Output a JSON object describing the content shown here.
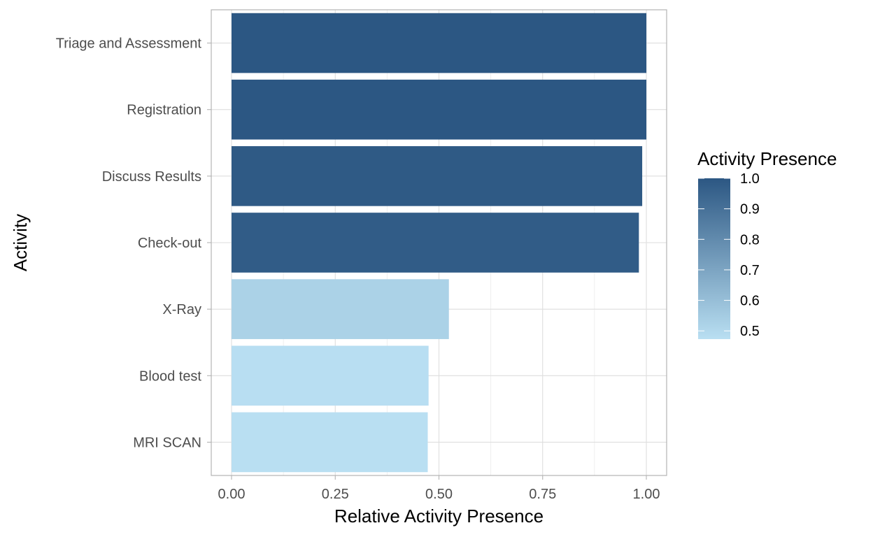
{
  "chart_data": {
    "type": "bar",
    "orientation": "horizontal",
    "title": "",
    "xlabel": "Relative Activity Presence",
    "ylabel": "Activity",
    "xlim": [
      -0.05,
      1.05
    ],
    "x_ticks": [
      "0.00",
      "0.25",
      "0.50",
      "0.75",
      "1.00"
    ],
    "x_tick_values": [
      0,
      0.25,
      0.5,
      0.75,
      1.0
    ],
    "categories": [
      "Triage and Assessment",
      "Registration",
      "Discuss Results",
      "Check-out",
      "X-Ray",
      "Blood test",
      "MRI SCAN"
    ],
    "values": [
      1.0,
      1.0,
      0.99,
      0.982,
      0.524,
      0.475,
      0.473
    ],
    "grid": true,
    "legend": {
      "title": "Activity Presence",
      "position": "right",
      "type": "colorbar",
      "range": [
        0.473,
        1.0
      ],
      "ticks": [
        "1.0",
        "0.9",
        "0.8",
        "0.7",
        "0.6",
        "0.5"
      ],
      "tick_values": [
        1.0,
        0.9,
        0.8,
        0.7,
        0.6,
        0.5
      ],
      "low_color": "#b9dff2",
      "high_color": "#2c5783"
    }
  }
}
